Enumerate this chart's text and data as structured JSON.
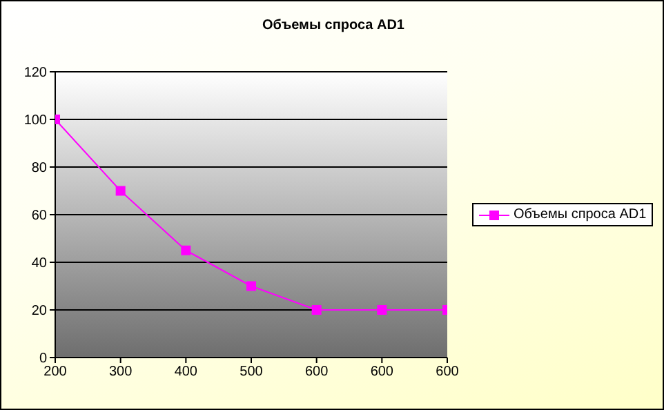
{
  "chart_data": {
    "type": "line",
    "title": "Объемы спроса AD1",
    "categories": [
      "200",
      "300",
      "400",
      "500",
      "600",
      "600",
      "600"
    ],
    "series": [
      {
        "name": "Объемы спроса AD1",
        "color": "#ff00ff",
        "values": [
          100,
          70,
          45,
          30,
          20,
          20,
          20
        ]
      }
    ],
    "ylim": [
      0,
      120
    ],
    "yticks": [
      0,
      20,
      40,
      60,
      80,
      100,
      120
    ],
    "grid": "y",
    "legend": "right",
    "marker": "square",
    "line_style": "solid"
  }
}
